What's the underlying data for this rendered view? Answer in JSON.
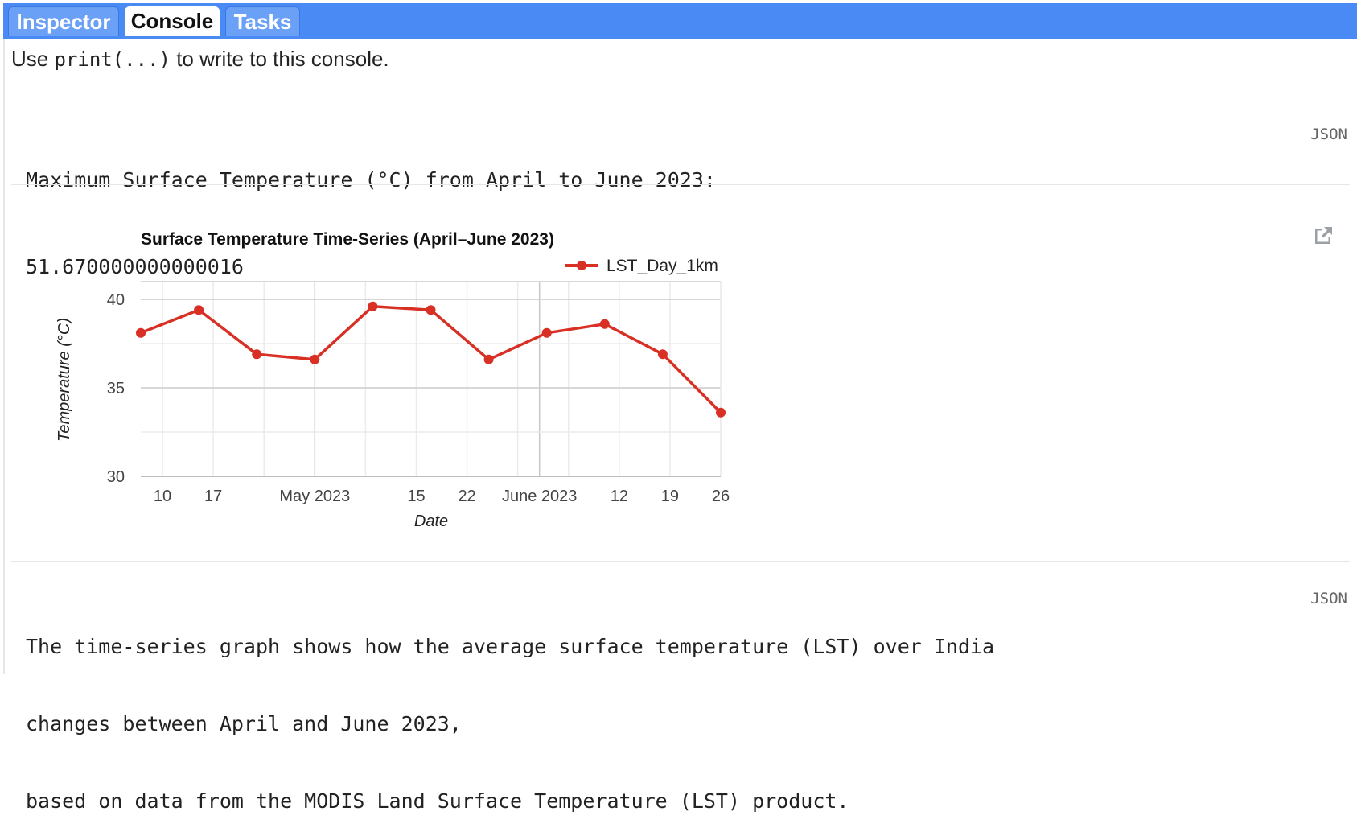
{
  "tabs": [
    {
      "label": "Inspector",
      "active": false
    },
    {
      "label": "Console",
      "active": true
    },
    {
      "label": "Tasks",
      "active": false
    }
  ],
  "console": {
    "hint_prefix": "Use ",
    "hint_code": "print(...)",
    "hint_suffix": " to write to this console.",
    "output1_line1": "Maximum Surface Temperature (°C) from April to June 2023:",
    "output1_line2": "51.670000000000016",
    "json_label": "JSON",
    "output3_line1": "The time-series graph shows how the average surface temperature (LST) over India",
    "output3_line2": "changes between April and June 2023,",
    "output3_line3": "based on data from the MODIS Land Surface Temperature (LST) product."
  },
  "colors": {
    "tabbar": "#4a8af4",
    "series": "#d93025"
  },
  "chart_data": {
    "type": "line",
    "title": "Surface Temperature Time-Series (April–June 2023)",
    "xlabel": "Date",
    "ylabel": "Temperature (°C)",
    "ylim": [
      30,
      41
    ],
    "y_ticks": [
      30,
      35,
      40
    ],
    "x_range": [
      "2023-04-07",
      "2023-06-26"
    ],
    "x_ticks": [
      {
        "date": "2023-04-10",
        "label": "10"
      },
      {
        "date": "2023-04-17",
        "label": "17"
      },
      {
        "date": "2023-05-01",
        "label": "May 2023"
      },
      {
        "date": "2023-05-15",
        "label": "15"
      },
      {
        "date": "2023-05-22",
        "label": "22"
      },
      {
        "date": "2023-06-01",
        "label": "June 2023"
      },
      {
        "date": "2023-06-12",
        "label": "12"
      },
      {
        "date": "2023-06-19",
        "label": "19"
      },
      {
        "date": "2023-06-26",
        "label": "26"
      }
    ],
    "legend_position": "top-right",
    "grid": true,
    "series": [
      {
        "name": "LST_Day_1km",
        "x": [
          "2023-04-07",
          "2023-04-15",
          "2023-04-23",
          "2023-05-01",
          "2023-05-09",
          "2023-05-17",
          "2023-05-25",
          "2023-06-02",
          "2023-06-10",
          "2023-06-18",
          "2023-06-26"
        ],
        "values": [
          38.1,
          39.4,
          36.9,
          36.6,
          39.6,
          39.4,
          36.6,
          38.1,
          38.6,
          36.9,
          33.6
        ]
      }
    ]
  }
}
